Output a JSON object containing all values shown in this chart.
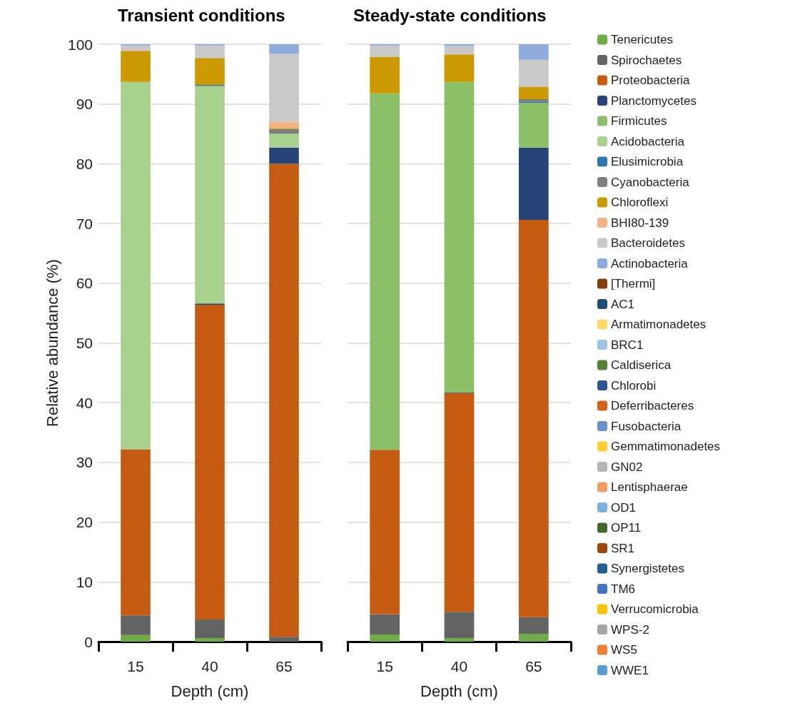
{
  "chart_data": [
    {
      "type": "bar",
      "title": "Transient conditions",
      "xlabel": "Depth (cm)",
      "ylabel": "Relative abundance (%)",
      "categories": [
        "15",
        "40",
        "65"
      ],
      "stacked": true,
      "ylim": [
        0,
        100
      ],
      "yticks": [
        0,
        10,
        20,
        30,
        40,
        50,
        60,
        70,
        80,
        90,
        100
      ],
      "grid": "y",
      "series": [
        {
          "color": "#70ad47",
          "values": [
            1.1,
            0.6,
            0
          ]
        },
        {
          "color": "#636363",
          "values": [
            3.3,
            3.1,
            0.8
          ]
        },
        {
          "color": "#c55a11",
          "values": [
            27.8,
            52.7,
            79.2
          ]
        },
        {
          "color": "#264478",
          "values": [
            0,
            0.2,
            2.7
          ]
        },
        {
          "color": "#a9d18e",
          "values": [
            61.5,
            36.4,
            2.3
          ]
        },
        {
          "color": "#2e75b6",
          "values": [
            0,
            0.2,
            0
          ]
        },
        {
          "color": "#7f7f7f",
          "values": [
            0,
            0,
            0.8
          ]
        },
        {
          "color": "#cc9900",
          "values": [
            5.2,
            4.5,
            0.2
          ]
        },
        {
          "color": "#f4b183",
          "values": [
            0,
            0,
            1.0
          ]
        },
        {
          "color": "#c9c9c9",
          "values": [
            0.9,
            2.1,
            11.4
          ]
        },
        {
          "color": "#8faadc",
          "values": [
            0.2,
            0.2,
            1.6
          ]
        }
      ]
    },
    {
      "type": "bar",
      "title": "Steady-state conditions",
      "xlabel": "Depth (cm)",
      "categories": [
        "15",
        "40",
        "65"
      ],
      "stacked": true,
      "ylim": [
        0,
        100
      ],
      "yticks": [
        0,
        10,
        20,
        30,
        40,
        50,
        60,
        70,
        80,
        90,
        100
      ],
      "grid": "y",
      "legend": "right",
      "tick_labels": "x",
      "series": [
        {
          "name": "Tenericutes",
          "color": "#70ad47",
          "values": [
            1.2,
            0.6,
            1.3
          ]
        },
        {
          "name": "Spirochaetes",
          "color": "#636363",
          "values": [
            3.4,
            4.4,
            2.8
          ]
        },
        {
          "name": "Proteobacteria",
          "color": "#c55a11",
          "values": [
            27.5,
            36.6,
            66.5
          ]
        },
        {
          "name": "Planctomycetes",
          "color": "#264478",
          "values": [
            0,
            0.1,
            12.1
          ]
        },
        {
          "name": "Firmicutes",
          "color": "#8cc068",
          "values": [
            59.7,
            52.0,
            7.5
          ]
        },
        {
          "name": "Acidobacteria",
          "color": "#a9d18e",
          "values": [
            0,
            0,
            0
          ]
        },
        {
          "name": "Elusimicrobia",
          "color": "#2e75b6",
          "values": [
            0,
            0,
            0.2
          ]
        },
        {
          "name": "Cyanobacteria",
          "color": "#7f7f7f",
          "values": [
            0,
            0,
            0.4
          ]
        },
        {
          "name": "Chloroflexi",
          "color": "#cc9900",
          "values": [
            6.1,
            4.6,
            2.1
          ]
        },
        {
          "name": "BHI80-139",
          "color": "#f4b183",
          "values": [
            0,
            0,
            0
          ]
        },
        {
          "name": "Bacteroidetes",
          "color": "#c9c9c9",
          "values": [
            1.9,
            1.4,
            4.5
          ]
        },
        {
          "name": "Actinobacteria",
          "color": "#8faadc",
          "values": [
            0.2,
            0.3,
            2.6
          ]
        },
        {
          "name": "[Thermi]",
          "color": "#843c0c",
          "values": [
            0,
            0,
            0
          ]
        },
        {
          "name": "AC1",
          "color": "#1f4e79",
          "values": [
            0,
            0,
            0
          ]
        },
        {
          "name": "Armatimonadetes",
          "color": "#ffd966",
          "values": [
            0,
            0,
            0
          ]
        },
        {
          "name": "BRC1",
          "color": "#9dc3e6",
          "values": [
            0,
            0,
            0
          ]
        },
        {
          "name": "Caldiserica",
          "color": "#548235",
          "values": [
            0,
            0,
            0
          ]
        },
        {
          "name": "Chlorobi",
          "color": "#2f5597",
          "values": [
            0,
            0,
            0
          ]
        },
        {
          "name": "Deferribacteres",
          "color": "#d4621a",
          "values": [
            0,
            0,
            0
          ]
        },
        {
          "name": "Fusobacteria",
          "color": "#698ed0",
          "values": [
            0,
            0,
            0
          ]
        },
        {
          "name": "Gemmatimonadetes",
          "color": "#ffcd33",
          "values": [
            0,
            0,
            0
          ]
        },
        {
          "name": "GN02",
          "color": "#b4b4b4",
          "values": [
            0,
            0,
            0
          ]
        },
        {
          "name": "Lentisphaerae",
          "color": "#f19c65",
          "values": [
            0,
            0,
            0
          ]
        },
        {
          "name": "OD1",
          "color": "#7cafdd",
          "values": [
            0,
            0,
            0
          ]
        },
        {
          "name": "OP11",
          "color": "#43682b",
          "values": [
            0,
            0,
            0
          ]
        },
        {
          "name": "SR1",
          "color": "#9e480e",
          "values": [
            0,
            0,
            0
          ]
        },
        {
          "name": "Synergistetes",
          "color": "#255e91",
          "values": [
            0,
            0,
            0
          ]
        },
        {
          "name": "TM6",
          "color": "#4472c4",
          "values": [
            0,
            0,
            0
          ]
        },
        {
          "name": "Verrucomicrobia",
          "color": "#ffc000",
          "values": [
            0,
            0,
            0
          ]
        },
        {
          "name": "WPS-2",
          "color": "#a5a5a5",
          "values": [
            0,
            0,
            0
          ]
        },
        {
          "name": "WS5",
          "color": "#ed7d31",
          "values": [
            0,
            0,
            0
          ]
        },
        {
          "name": "WWE1",
          "color": "#5b9bd5",
          "values": [
            0,
            0,
            0
          ]
        }
      ]
    }
  ]
}
